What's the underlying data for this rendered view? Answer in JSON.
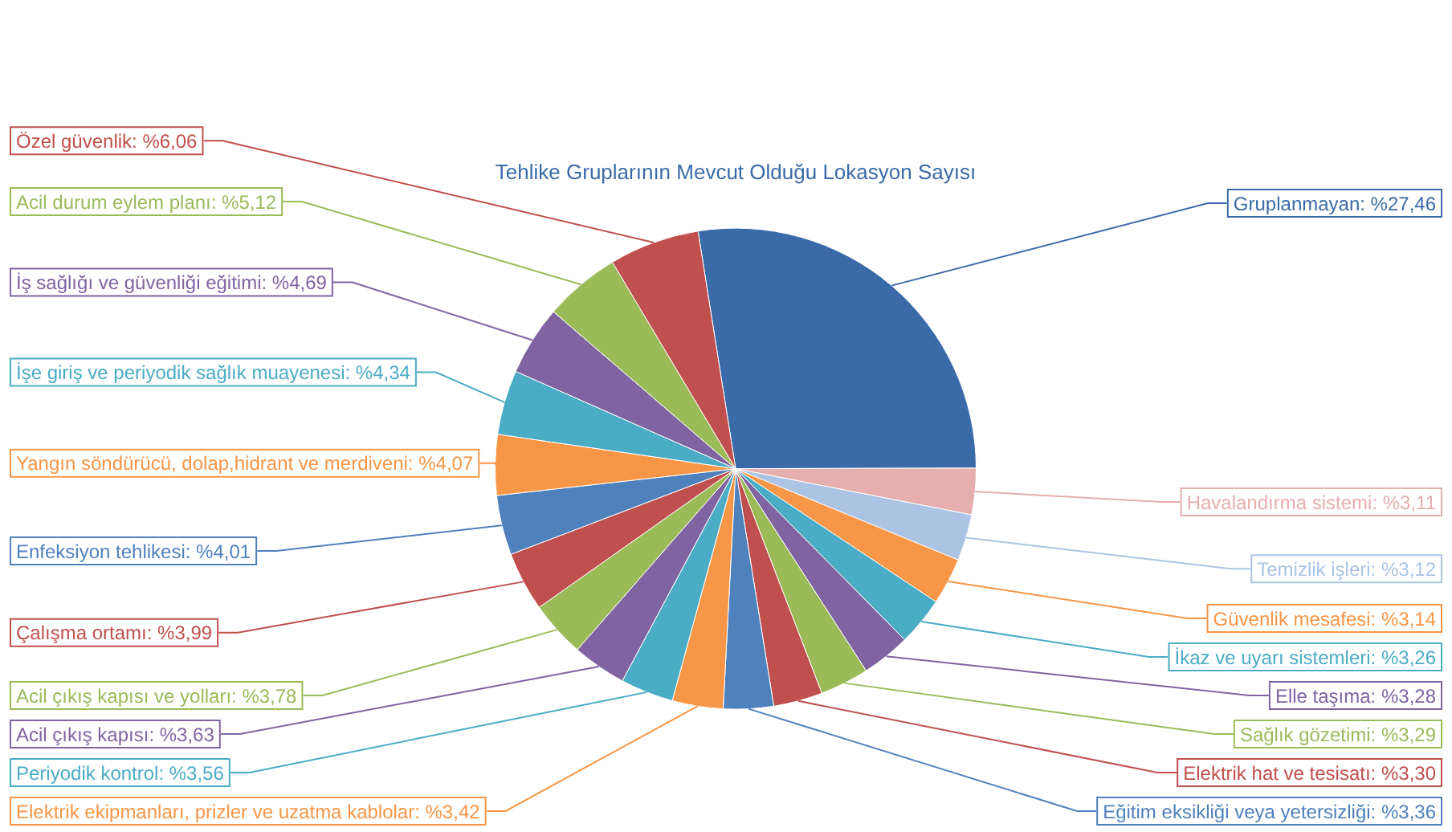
{
  "chart_data": {
    "type": "pie",
    "title": "Tehlike Gruplarının Mevcut Olduğu Lokasyon Sayısı",
    "legend": false,
    "categories": [
      "Gruplanmayan",
      "Havalandırma sistemi",
      "Temizlik işleri",
      "Güvenlik mesafesi",
      "İkaz ve uyarı sistemleri",
      "Elle taşıma",
      "Sağlık gözetimi",
      "Elektrik hat ve tesisatı",
      "Eğitim eksikliği veya yetersizliği",
      "Elektrik ekipmanları, prizler ve uzatma kablolar",
      "Periyodik kontrol",
      "Acil çıkış kapısı",
      "Acil çıkış kapısı ve yolları",
      "Çalışma ortamı",
      "Enfeksiyon tehlikesi",
      "Yangın söndürücü, dolap,hidrant ve merdiveni",
      "İşe giriş ve periyodik sağlık muayenesi",
      "İş sağlığı ve güvenliği eğitimi",
      "Acil durum eylem planı",
      "Özel güvenlik"
    ],
    "values": [
      27.46,
      3.11,
      3.12,
      3.14,
      3.26,
      3.28,
      3.29,
      3.3,
      3.36,
      3.42,
      3.56,
      3.63,
      3.78,
      3.99,
      4.01,
      4.07,
      4.34,
      4.69,
      5.12,
      6.06
    ],
    "value_labels": [
      "%27,46",
      "%3,11",
      "%3,12",
      "%3,14",
      "%3,26",
      "%3,28",
      "%3,29",
      "%3,30",
      "%3,36",
      "%3,42",
      "%3,56",
      "%3,63",
      "%3,78",
      "%3,99",
      "%4,01",
      "%4,07",
      "%4,34",
      "%4,69",
      "%5,12",
      "%6,06"
    ],
    "colors": [
      "#3a6ba8",
      "#e6aeae",
      "#abc4e4",
      "#f79646",
      "#4bacc6",
      "#8064a2",
      "#9bbb59",
      "#c0504d",
      "#4f81bd",
      "#f79646",
      "#4bacc6",
      "#8064a2",
      "#9bbb59",
      "#c0504d",
      "#4f81bd",
      "#f79646",
      "#4bacc6",
      "#8064a2",
      "#9bbb59",
      "#c0504d"
    ]
  }
}
